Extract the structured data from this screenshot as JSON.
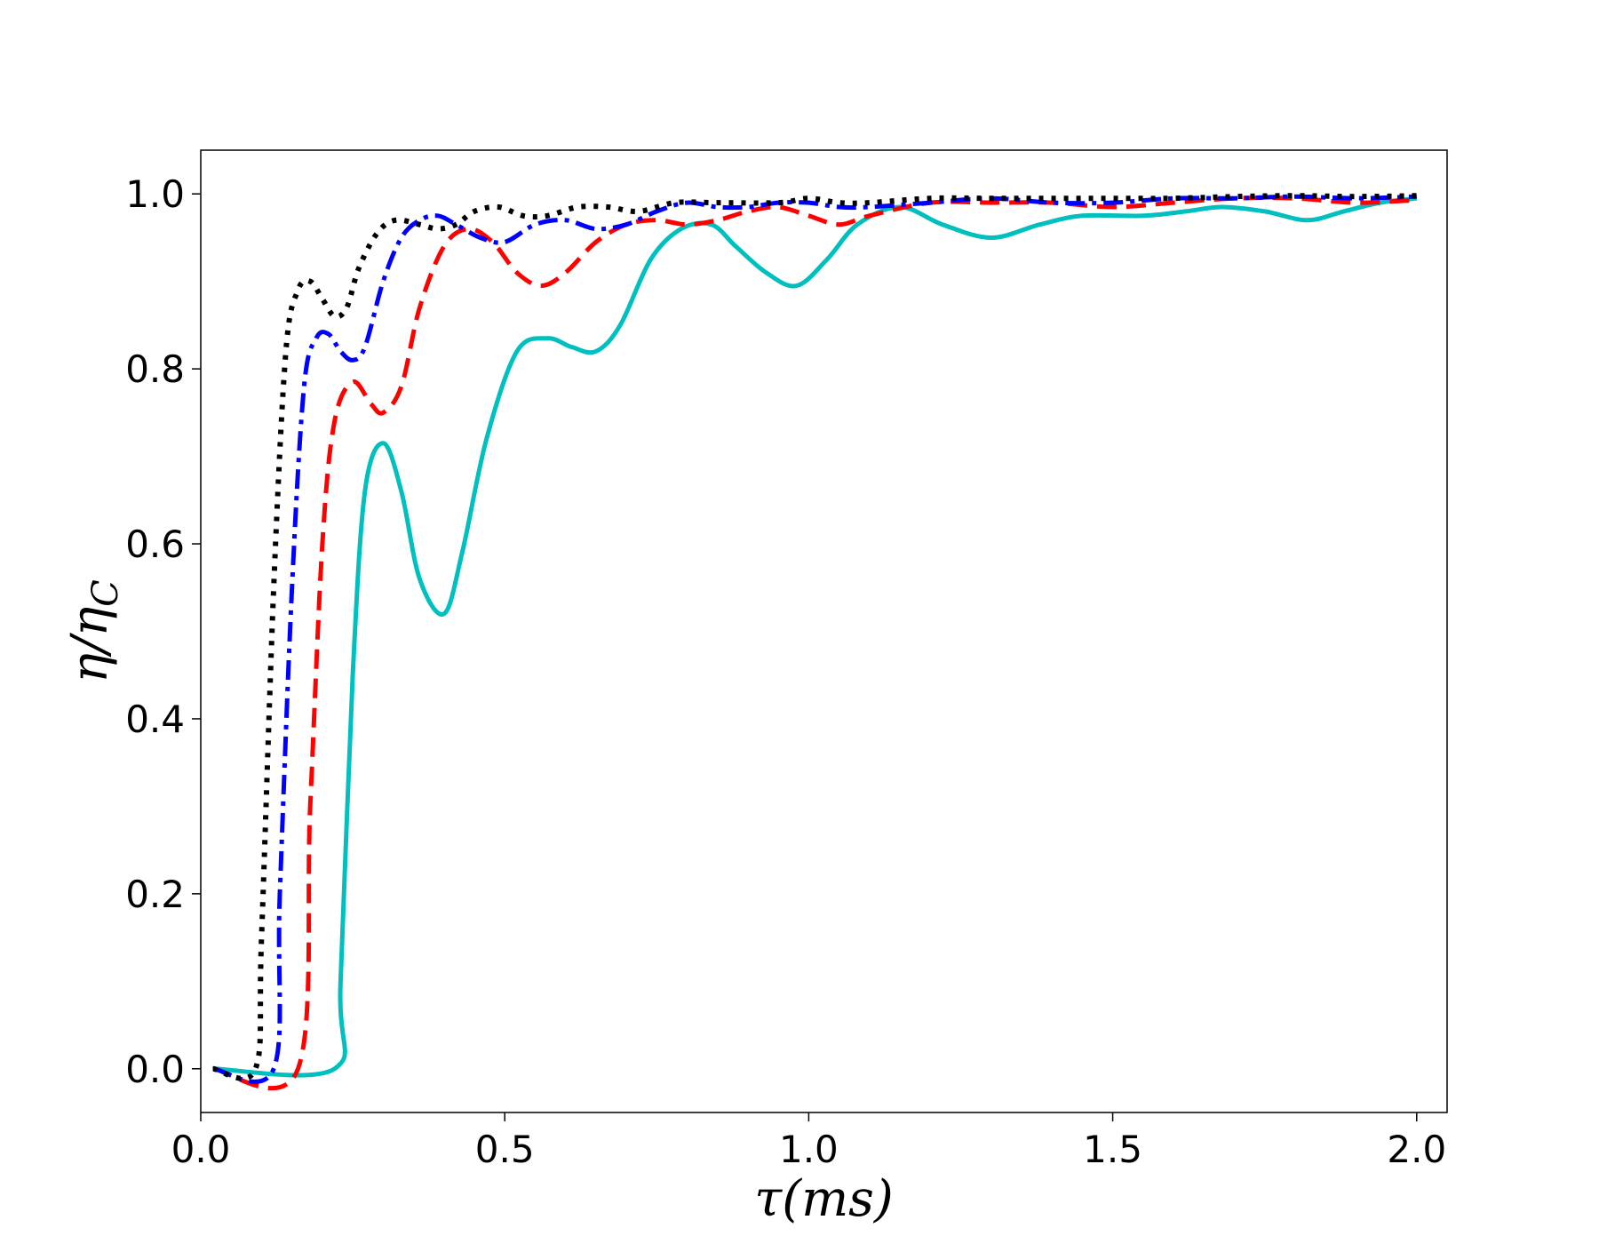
{
  "chart_data": {
    "type": "line",
    "title": "",
    "xlabel": "τ(ms)",
    "ylabel_main": "η/η",
    "ylabel_sub": "C",
    "xlim": [
      0.0,
      2.05
    ],
    "ylim": [
      -0.05,
      1.05
    ],
    "xticks": [
      0.0,
      0.5,
      1.0,
      1.5,
      2.0
    ],
    "xtick_labels": [
      "0.0",
      "0.5",
      "1.0",
      "1.5",
      "2.0"
    ],
    "yticks": [
      0.0,
      0.2,
      0.4,
      0.6,
      0.8,
      1.0
    ],
    "ytick_labels": [
      "0.0",
      "0.2",
      "0.4",
      "0.6",
      "0.8",
      "1.0"
    ],
    "grid": false,
    "legend": "none",
    "series": [
      {
        "color": "#00bfbf",
        "style": "solid",
        "x": [
          0.02,
          0.22,
          0.23,
          0.25,
          0.27,
          0.3,
          0.33,
          0.36,
          0.4,
          0.43,
          0.47,
          0.52,
          0.57,
          0.61,
          0.65,
          0.69,
          0.74,
          0.79,
          0.84,
          0.88,
          0.93,
          0.98,
          1.03,
          1.08,
          1.15,
          1.22,
          1.3,
          1.38,
          1.45,
          1.55,
          1.62,
          1.68,
          1.75,
          1.82,
          1.88,
          1.94,
          2.0
        ],
        "y": [
          0.0,
          0.0,
          0.1,
          0.45,
          0.66,
          0.715,
          0.66,
          0.56,
          0.52,
          0.59,
          0.72,
          0.82,
          0.835,
          0.825,
          0.82,
          0.85,
          0.925,
          0.96,
          0.965,
          0.94,
          0.91,
          0.895,
          0.925,
          0.965,
          0.985,
          0.965,
          0.95,
          0.965,
          0.975,
          0.975,
          0.98,
          0.985,
          0.98,
          0.97,
          0.98,
          0.99,
          0.995
        ]
      },
      {
        "color": "#ff0000",
        "style": "dashed",
        "x": [
          0.02,
          0.16,
          0.18,
          0.2,
          0.22,
          0.25,
          0.28,
          0.3,
          0.33,
          0.36,
          0.4,
          0.44,
          0.48,
          0.52,
          0.56,
          0.6,
          0.65,
          0.7,
          0.75,
          0.8,
          0.85,
          0.9,
          0.95,
          1.0,
          1.05,
          1.1,
          1.2,
          1.3,
          1.4,
          1.5,
          1.6,
          1.7,
          1.8,
          1.9,
          2.0
        ],
        "y": [
          0.0,
          0.0,
          0.3,
          0.6,
          0.74,
          0.785,
          0.76,
          0.75,
          0.78,
          0.87,
          0.94,
          0.96,
          0.945,
          0.91,
          0.895,
          0.91,
          0.945,
          0.965,
          0.97,
          0.965,
          0.97,
          0.98,
          0.985,
          0.975,
          0.965,
          0.975,
          0.99,
          0.99,
          0.99,
          0.985,
          0.99,
          0.995,
          0.995,
          0.99,
          0.993
        ]
      },
      {
        "color": "#0000ff",
        "style": "dashdot",
        "x": [
          0.02,
          0.12,
          0.13,
          0.15,
          0.17,
          0.19,
          0.21,
          0.23,
          0.25,
          0.27,
          0.3,
          0.33,
          0.36,
          0.39,
          0.42,
          0.46,
          0.5,
          0.55,
          0.6,
          0.65,
          0.7,
          0.75,
          0.8,
          0.85,
          0.9,
          0.95,
          1.0,
          1.05,
          1.1,
          1.2,
          1.3,
          1.4,
          1.5,
          1.6,
          1.7,
          1.8,
          1.9,
          2.0
        ],
        "y": [
          0.0,
          0.0,
          0.2,
          0.55,
          0.78,
          0.835,
          0.84,
          0.82,
          0.81,
          0.825,
          0.9,
          0.95,
          0.97,
          0.975,
          0.965,
          0.95,
          0.945,
          0.965,
          0.97,
          0.96,
          0.965,
          0.98,
          0.99,
          0.985,
          0.985,
          0.99,
          0.99,
          0.985,
          0.985,
          0.99,
          0.995,
          0.99,
          0.99,
          0.995,
          0.995,
          0.997,
          0.995,
          0.997
        ]
      },
      {
        "color": "#000000",
        "style": "dotted",
        "x": [
          0.02,
          0.09,
          0.1,
          0.12,
          0.14,
          0.16,
          0.18,
          0.2,
          0.22,
          0.24,
          0.26,
          0.29,
          0.32,
          0.36,
          0.39,
          0.42,
          0.45,
          0.49,
          0.53,
          0.57,
          0.62,
          0.67,
          0.72,
          0.78,
          0.85,
          0.95,
          1.0,
          1.05,
          1.1,
          1.2,
          1.3,
          1.4,
          1.5,
          1.6,
          1.7,
          1.8,
          1.9,
          2.0
        ],
        "y": [
          0.0,
          0.0,
          0.15,
          0.55,
          0.82,
          0.89,
          0.9,
          0.88,
          0.86,
          0.87,
          0.915,
          0.955,
          0.97,
          0.965,
          0.96,
          0.965,
          0.98,
          0.985,
          0.975,
          0.975,
          0.985,
          0.985,
          0.98,
          0.99,
          0.99,
          0.99,
          0.995,
          0.99,
          0.99,
          0.995,
          0.995,
          0.995,
          0.995,
          0.995,
          0.997,
          0.998,
          0.997,
          0.998
        ]
      }
    ]
  }
}
